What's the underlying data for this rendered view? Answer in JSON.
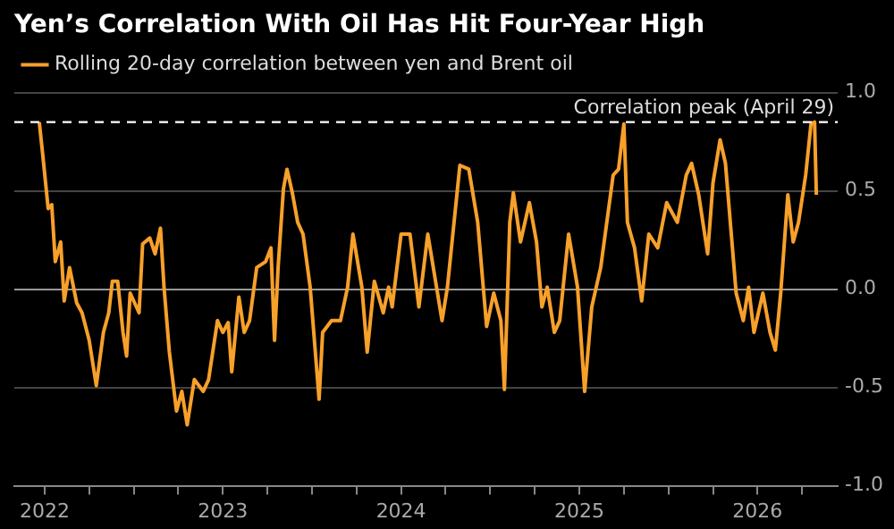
{
  "chart_data": {
    "type": "line",
    "title": "Yen’s Correlation With Oil Has Hit Four-Year High",
    "x": [
      2021.97,
      2021.99,
      2022.02,
      2022.04,
      2022.06,
      2022.09,
      2022.11,
      2022.14,
      2022.18,
      2022.21,
      2022.25,
      2022.29,
      2022.33,
      2022.36,
      2022.38,
      2022.41,
      2022.44,
      2022.46,
      2022.48,
      2022.53,
      2022.55,
      2022.59,
      2022.62,
      2022.65,
      2022.67,
      2022.7,
      2022.74,
      2022.77,
      2022.8,
      2022.84,
      2022.89,
      2022.92,
      2022.97,
      2023.0,
      2023.03,
      2023.05,
      2023.09,
      2023.12,
      2023.15,
      2023.19,
      2023.24,
      2023.27,
      2023.29,
      2023.31,
      2023.34,
      2023.36,
      2023.39,
      2023.42,
      2023.45,
      2023.49,
      2023.54,
      2023.56,
      2023.61,
      2023.66,
      2023.7,
      2023.73,
      2023.78,
      2023.81,
      2023.85,
      2023.9,
      2023.93,
      2023.95,
      2024.0,
      2024.05,
      2024.1,
      2024.15,
      2024.23,
      2024.26,
      2024.33,
      2024.38,
      2024.43,
      2024.48,
      2024.52,
      2024.56,
      2024.58,
      2024.61,
      2024.63,
      2024.67,
      2024.72,
      2024.76,
      2024.79,
      2024.82,
      2024.86,
      2024.89,
      2024.94,
      2024.99,
      2025.03,
      2025.07,
      2025.12,
      2025.19,
      2025.22,
      2025.25,
      2025.27,
      2025.31,
      2025.35,
      2025.39,
      2025.44,
      2025.49,
      2025.55,
      2025.6,
      2025.63,
      2025.67,
      2025.72,
      2025.75,
      2025.79,
      2025.82,
      2025.85,
      2025.88,
      2025.92,
      2025.95,
      2025.98,
      2026.03,
      2026.07,
      2026.1,
      2026.13,
      2026.17,
      2026.2,
      2026.23,
      2026.27,
      2026.3,
      2026.32,
      2026.33
    ],
    "series": [
      {
        "name": "Rolling 20-day correlation between yen and Brent oil",
        "color": "#f7a02a",
        "values": [
          0.85,
          0.68,
          0.41,
          0.43,
          0.14,
          0.24,
          -0.06,
          0.11,
          -0.07,
          -0.12,
          -0.26,
          -0.49,
          -0.22,
          -0.12,
          0.04,
          0.04,
          -0.22,
          -0.34,
          -0.02,
          -0.12,
          0.23,
          0.26,
          0.18,
          0.31,
          0.01,
          -0.32,
          -0.62,
          -0.52,
          -0.69,
          -0.46,
          -0.52,
          -0.46,
          -0.16,
          -0.22,
          -0.17,
          -0.42,
          -0.04,
          -0.22,
          -0.16,
          0.11,
          0.14,
          0.21,
          -0.26,
          0.11,
          0.51,
          0.61,
          0.49,
          0.34,
          0.28,
          0.01,
          -0.56,
          -0.22,
          -0.16,
          -0.16,
          0.01,
          0.28,
          0.01,
          -0.32,
          0.04,
          -0.12,
          0.01,
          -0.09,
          0.28,
          0.28,
          -0.09,
          0.28,
          -0.16,
          0.01,
          0.63,
          0.61,
          0.34,
          -0.19,
          -0.02,
          -0.16,
          -0.51,
          0.34,
          0.49,
          0.24,
          0.44,
          0.24,
          -0.09,
          0.01,
          -0.22,
          -0.16,
          0.28,
          0.01,
          -0.52,
          -0.09,
          0.11,
          0.58,
          0.61,
          0.84,
          0.34,
          0.21,
          -0.06,
          0.28,
          0.21,
          0.44,
          0.34,
          0.58,
          0.64,
          0.48,
          0.18,
          0.54,
          0.76,
          0.64,
          0.31,
          -0.02,
          -0.16,
          0.01,
          -0.22,
          -0.02,
          -0.22,
          -0.31,
          -0.02,
          0.48,
          0.24,
          0.34,
          0.58,
          0.84,
          0.85,
          0.48
        ]
      }
    ],
    "xlim": [
      2021.83,
      2026.45
    ],
    "xticks": [
      2022,
      {
        "value": 2022.25,
        "label": null
      },
      {
        "value": 2022.5,
        "label": null
      },
      {
        "value": 2022.75,
        "label": null
      },
      2023,
      {
        "value": 2023.25,
        "label": null
      },
      {
        "value": 2023.5,
        "label": null
      },
      {
        "value": 2023.75,
        "label": null
      },
      2024,
      {
        "value": 2024.25,
        "label": null
      },
      {
        "value": 2024.5,
        "label": null
      },
      {
        "value": 2024.75,
        "label": null
      },
      2025,
      {
        "value": 2025.25,
        "label": null
      },
      {
        "value": 2025.5,
        "label": null
      },
      {
        "value": 2025.75,
        "label": null
      },
      2026,
      {
        "value": 2026.25,
        "label": null
      }
    ],
    "ylim": [
      -1,
      1
    ],
    "yticks": [
      {
        "value": -1,
        "label": "-1.0"
      },
      {
        "value": -0.5,
        "label": "-0.5"
      },
      {
        "value": 0,
        "label": "0.0"
      },
      {
        "value": 0.5,
        "label": "0.5"
      },
      {
        "value": 1,
        "label": "1.0"
      }
    ],
    "ref_lines": [
      {
        "axis": "y",
        "value": 0.85,
        "label": "Correlation peak (April 29)",
        "color": "#ffffff",
        "line_style": "dashed"
      }
    ],
    "grid": "y",
    "legend": "top left",
    "marker": "none",
    "line_style": "solid"
  }
}
